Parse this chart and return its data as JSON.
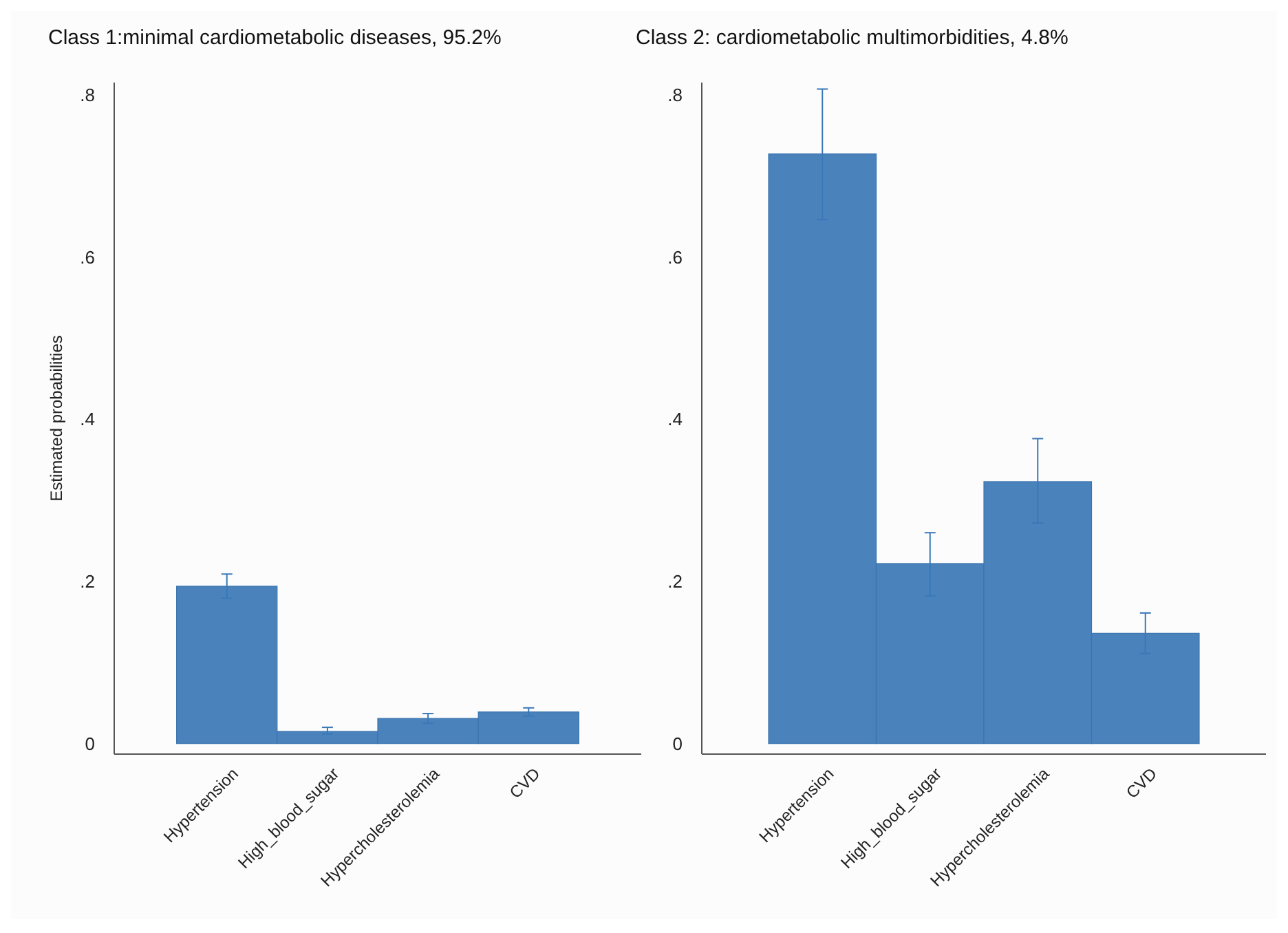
{
  "chart_data": [
    {
      "type": "bar",
      "title": "Class 1:minimal cardiometabolic diseases, 95.2%",
      "ylabel": "Estimated probabilities",
      "categories": [
        "Hypertension",
        "High_blood_sugar",
        "Hypercholesterolemia",
        "CVD"
      ],
      "values": [
        0.194,
        0.015,
        0.031,
        0.039
      ],
      "errors": [
        [
          0.179,
          0.209
        ],
        [
          0.012,
          0.02
        ],
        [
          0.025,
          0.037
        ],
        [
          0.034,
          0.044
        ]
      ],
      "color": "#4a82bc",
      "ylim": [
        -0.013,
        0.815
      ],
      "yticks": [
        {
          "value": 0,
          "label": "0"
        },
        {
          "value": 0.2,
          "label": ".2"
        },
        {
          "value": 0.4,
          "label": ".4"
        },
        {
          "value": 0.6,
          "label": ".6"
        },
        {
          "value": 0.8,
          "label": ".8"
        }
      ],
      "grid": false
    },
    {
      "type": "bar",
      "title": "Class 2: cardiometabolic multimorbidities, 4.8%",
      "categories": [
        "Hypertension",
        "High_blood_sugar",
        "Hypercholesterolemia",
        "CVD"
      ],
      "values": [
        0.727,
        0.222,
        0.323,
        0.136
      ],
      "errors": [
        [
          0.646,
          0.807
        ],
        [
          0.182,
          0.26
        ],
        [
          0.272,
          0.376
        ],
        [
          0.111,
          0.161
        ]
      ],
      "color": "#4a82bc",
      "ylim": [
        -0.013,
        0.815
      ],
      "yticks": [
        {
          "value": 0,
          "label": "0"
        },
        {
          "value": 0.2,
          "label": ".2"
        },
        {
          "value": 0.4,
          "label": ".4"
        },
        {
          "value": 0.6,
          "label": ".6"
        },
        {
          "value": 0.8,
          "label": ".8"
        }
      ],
      "grid": false
    }
  ]
}
